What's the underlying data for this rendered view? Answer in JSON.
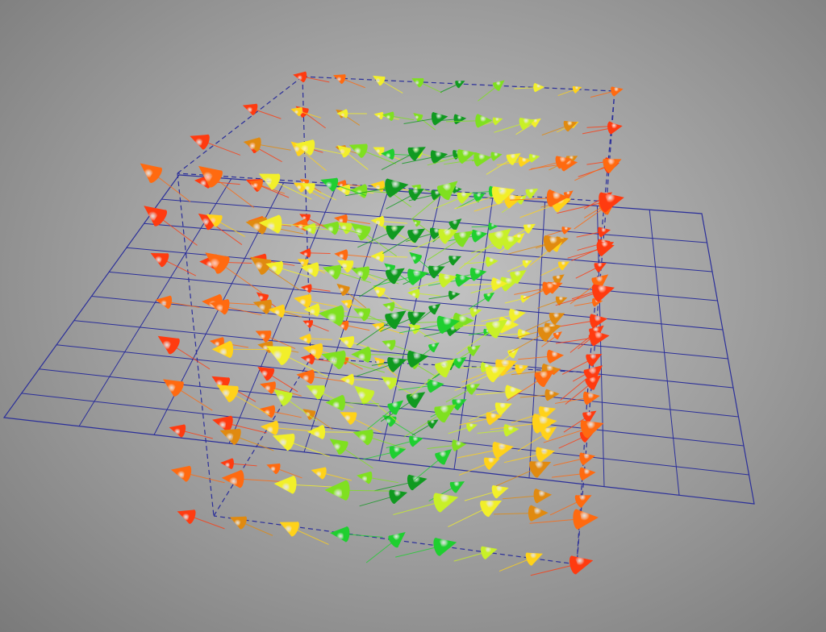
{
  "scene": {
    "glyph_type": "cone",
    "grid_color": "#2b2f9a",
    "bounding_box_color": "#2b2f9a",
    "bounding_box_style": "dashed",
    "glyph_palette": [
      "#ff3b10",
      "#ff6a10",
      "#e08a10",
      "#ffd21a",
      "#f2ef2a",
      "#c8f028",
      "#7fe020",
      "#1fcf30",
      "#109a20"
    ]
  }
}
